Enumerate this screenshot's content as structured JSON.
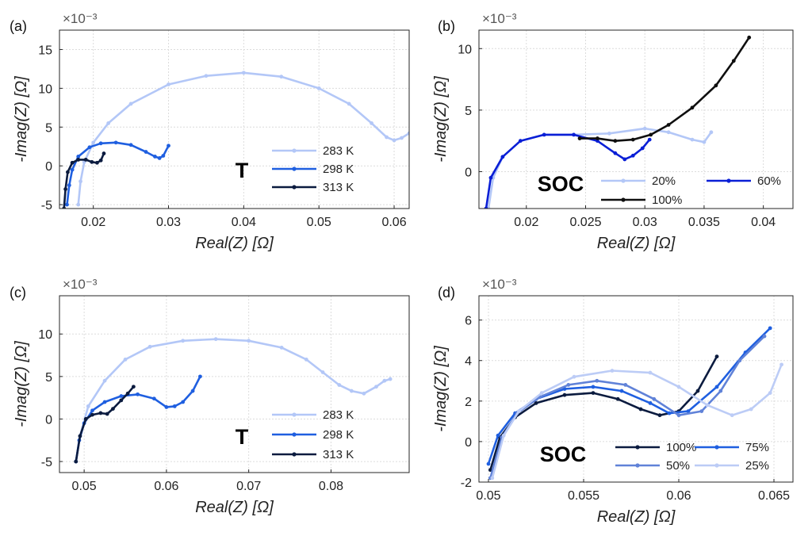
{
  "figure": {
    "palette": {
      "lightblue": "#b3c7f7",
      "blue": "#1f5fe0",
      "navy": "#0b1b3f",
      "black": "#0f0f0f",
      "deepblue": "#0a1fd6",
      "midblue": "#6082d8",
      "paleblue": "#bcccf6"
    }
  },
  "chart_data": [
    {
      "panel_label": "(a)",
      "type": "line",
      "xlabel": "Real(Z) [Ω]",
      "ylabel": "-Imag(Z) [Ω]",
      "multiplier": "×10⁻³",
      "xlim": [
        0.0155,
        0.062
      ],
      "ylim": [
        -5.5,
        17.5
      ],
      "xticks": [
        0.02,
        0.03,
        0.04,
        0.05,
        0.06
      ],
      "xticklabels": [
        "0.02",
        "0.03",
        "0.04",
        "0.05",
        "0.06"
      ],
      "yticks": [
        -5,
        0,
        5,
        10,
        15
      ],
      "yticklabels": [
        "-5",
        "0",
        "5",
        "10",
        "15"
      ],
      "grid": true,
      "annotation": "T",
      "legend_position": "lower-right",
      "legend_columns": 1,
      "series": [
        {
          "name": "283 K",
          "color": "#b3c7f7",
          "x": [
            0.018,
            0.0183,
            0.0188,
            0.02,
            0.022,
            0.025,
            0.03,
            0.035,
            0.04,
            0.045,
            0.05,
            0.054,
            0.057,
            0.059,
            0.06,
            0.061,
            0.062
          ],
          "y": [
            -5.0,
            -2.0,
            0.5,
            3.0,
            5.5,
            8.0,
            10.5,
            11.6,
            12.0,
            11.5,
            10.0,
            8.0,
            5.5,
            3.7,
            3.3,
            3.6,
            4.2
          ]
        },
        {
          "name": "298 K",
          "color": "#1f5fe0",
          "x": [
            0.0165,
            0.0168,
            0.0172,
            0.018,
            0.0195,
            0.021,
            0.023,
            0.025,
            0.027,
            0.0282,
            0.0288,
            0.0293,
            0.03
          ],
          "y": [
            -5.0,
            -2.5,
            -0.5,
            1.2,
            2.4,
            2.9,
            3.0,
            2.7,
            1.8,
            1.2,
            1.0,
            1.3,
            2.6
          ]
        },
        {
          "name": "313 K",
          "color": "#0b1b3f",
          "x": [
            0.0161,
            0.0163,
            0.0166,
            0.0172,
            0.018,
            0.019,
            0.0198,
            0.0205,
            0.021,
            0.0214
          ],
          "y": [
            -5.5,
            -3.0,
            -0.8,
            0.4,
            0.8,
            0.8,
            0.5,
            0.4,
            0.7,
            1.6
          ]
        }
      ]
    },
    {
      "panel_label": "(b)",
      "type": "line",
      "xlabel": "Real(Z) [Ω]",
      "ylabel": "-Imag(Z) [Ω]",
      "multiplier": "×10⁻³",
      "xlim": [
        0.016,
        0.0425
      ],
      "ylim": [
        -3.0,
        11.5
      ],
      "xticks": [
        0.02,
        0.025,
        0.03,
        0.035,
        0.04
      ],
      "xticklabels": [
        "0.02",
        "0.025",
        "0.03",
        "0.035",
        "0.04"
      ],
      "yticks": [
        0,
        5,
        10
      ],
      "yticklabels": [
        "0",
        "5",
        "10"
      ],
      "grid": true,
      "annotation": "SOC",
      "legend_position": "lower-right",
      "legend_columns": 2,
      "series": [
        {
          "name": "20%",
          "color": "#b3c7f7",
          "x": [
            0.0168,
            0.0172,
            0.018,
            0.0195,
            0.0215,
            0.024,
            0.027,
            0.03,
            0.032,
            0.034,
            0.035,
            0.0356
          ],
          "y": [
            -3.0,
            -0.5,
            1.2,
            2.5,
            3.0,
            3.0,
            3.1,
            3.5,
            3.2,
            2.6,
            2.4,
            3.2
          ]
        },
        {
          "name": "60%",
          "color": "#0a1fd6",
          "x": [
            0.0166,
            0.017,
            0.018,
            0.0195,
            0.0215,
            0.024,
            0.026,
            0.0275,
            0.0283,
            0.029,
            0.0298,
            0.0304
          ],
          "y": [
            -3.0,
            -0.5,
            1.2,
            2.5,
            3.0,
            3.0,
            2.5,
            1.5,
            1.0,
            1.3,
            1.9,
            2.6
          ]
        },
        {
          "name": "100%",
          "color": "#0f0f0f",
          "x": [
            0.0245,
            0.026,
            0.0275,
            0.029,
            0.0305,
            0.032,
            0.034,
            0.036,
            0.0375,
            0.0388
          ],
          "y": [
            2.7,
            2.7,
            2.5,
            2.6,
            3.0,
            3.8,
            5.2,
            7.0,
            9.0,
            10.9
          ]
        }
      ]
    },
    {
      "panel_label": "(c)",
      "type": "line",
      "xlabel": "Real(Z) [Ω]",
      "ylabel": "-Imag(Z) [Ω]",
      "multiplier": "×10⁻³",
      "xlim": [
        0.047,
        0.0895
      ],
      "ylim": [
        -6.3,
        14.5
      ],
      "xticks": [
        0.05,
        0.06,
        0.07,
        0.08
      ],
      "xticklabels": [
        "0.05",
        "0.06",
        "0.07",
        "0.08"
      ],
      "yticks": [
        -5,
        0,
        5,
        10
      ],
      "yticklabels": [
        "-5",
        "0",
        "5",
        "10"
      ],
      "grid": true,
      "annotation": "T",
      "legend_position": "lower-right",
      "legend_columns": 1,
      "series": [
        {
          "name": "283 K",
          "color": "#b3c7f7",
          "x": [
            0.049,
            0.0495,
            0.0505,
            0.0525,
            0.055,
            0.058,
            0.062,
            0.066,
            0.07,
            0.074,
            0.077,
            0.079,
            0.081,
            0.0825,
            0.084,
            0.0855,
            0.0865,
            0.0872
          ],
          "y": [
            -5.0,
            -2.0,
            1.5,
            4.5,
            7.0,
            8.5,
            9.2,
            9.4,
            9.2,
            8.4,
            7.0,
            5.5,
            4.0,
            3.3,
            3.0,
            3.8,
            4.5,
            4.7
          ]
        },
        {
          "name": "298 K",
          "color": "#1f5fe0",
          "x": [
            0.049,
            0.0494,
            0.05,
            0.051,
            0.0525,
            0.0545,
            0.0565,
            0.0585,
            0.06,
            0.061,
            0.062,
            0.0632,
            0.0641
          ],
          "y": [
            -5.0,
            -2.5,
            -0.5,
            1.0,
            2.0,
            2.7,
            2.9,
            2.4,
            1.4,
            1.5,
            2.0,
            3.3,
            5.0
          ]
        },
        {
          "name": "313 K",
          "color": "#0b1b3f",
          "x": [
            0.049,
            0.0495,
            0.0502,
            0.051,
            0.052,
            0.0528,
            0.0535,
            0.0545,
            0.0553,
            0.056
          ],
          "y": [
            -5.0,
            -2.0,
            0.0,
            0.5,
            0.7,
            0.6,
            1.2,
            2.2,
            3.0,
            3.8
          ]
        }
      ]
    },
    {
      "panel_label": "(d)",
      "type": "line",
      "xlabel": "Real(Z) [Ω]",
      "ylabel": "-Imag(Z) [Ω]",
      "multiplier": "×10⁻³",
      "xlim": [
        0.0495,
        0.066
      ],
      "ylim": [
        -2.0,
        7.2
      ],
      "xticks": [
        0.05,
        0.055,
        0.06,
        0.065
      ],
      "xticklabels": [
        "0.05",
        "0.055",
        "0.06",
        "0.065"
      ],
      "yticks": [
        -2,
        0,
        2,
        4,
        6
      ],
      "yticklabels": [
        "-2",
        "0",
        "2",
        "4",
        "6"
      ],
      "grid": true,
      "annotation": "SOC",
      "legend_position": "lower-right",
      "legend_columns": 2,
      "series": [
        {
          "name": "100%",
          "color": "#0b1b3f",
          "x": [
            0.0501,
            0.0506,
            0.0514,
            0.0525,
            0.054,
            0.0555,
            0.0568,
            0.058,
            0.059,
            0.06,
            0.061,
            0.062
          ],
          "y": [
            -1.4,
            0.2,
            1.2,
            1.9,
            2.3,
            2.4,
            2.1,
            1.6,
            1.3,
            1.5,
            2.5,
            4.2
          ]
        },
        {
          "name": "75%",
          "color": "#1f5fe0",
          "x": [
            0.05,
            0.0505,
            0.0514,
            0.0525,
            0.054,
            0.0555,
            0.057,
            0.0585,
            0.0595,
            0.0605,
            0.062,
            0.0635,
            0.0648
          ],
          "y": [
            -1.1,
            0.3,
            1.4,
            2.1,
            2.6,
            2.7,
            2.5,
            1.9,
            1.4,
            1.5,
            2.7,
            4.4,
            5.6
          ]
        },
        {
          "name": "50%",
          "color": "#6082d8",
          "x": [
            0.0501,
            0.0507,
            0.0515,
            0.0527,
            0.0542,
            0.0557,
            0.0572,
            0.0587,
            0.06,
            0.0612,
            0.0622,
            0.0632,
            0.0645
          ],
          "y": [
            -1.8,
            0.2,
            1.4,
            2.2,
            2.8,
            3.0,
            2.8,
            2.1,
            1.3,
            1.5,
            2.5,
            4.0,
            5.2
          ]
        },
        {
          "name": "25%",
          "color": "#bcccf6",
          "x": [
            0.0502,
            0.0508,
            0.0516,
            0.0528,
            0.0545,
            0.0565,
            0.0585,
            0.06,
            0.0615,
            0.0628,
            0.0638,
            0.0648,
            0.0654
          ],
          "y": [
            -1.8,
            0.3,
            1.5,
            2.4,
            3.2,
            3.5,
            3.4,
            2.7,
            1.8,
            1.3,
            1.6,
            2.4,
            3.8
          ]
        }
      ]
    }
  ]
}
